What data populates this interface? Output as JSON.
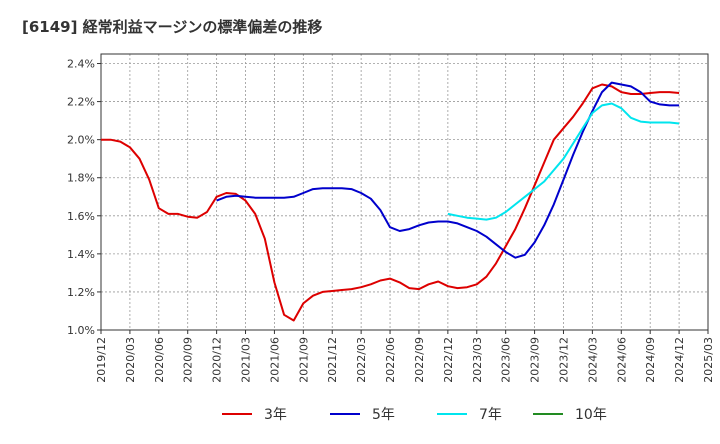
{
  "chart_data": {
    "type": "line",
    "title": "[6149]  経常利益マージンの標準偏差の推移",
    "xlabel": "",
    "ylabel": "",
    "ylim": [
      1.0,
      2.45
    ],
    "y_ticks": [
      1.0,
      1.2,
      1.4,
      1.6,
      1.8,
      2.0,
      2.2,
      2.4
    ],
    "y_tick_labels": [
      "1.0%",
      "1.2%",
      "1.4%",
      "1.6%",
      "1.8%",
      "2.0%",
      "2.2%",
      "2.4%"
    ],
    "x_tick_labels": [
      "2019/12",
      "2020/03",
      "2020/06",
      "2020/09",
      "2020/12",
      "2021/03",
      "2021/06",
      "2021/09",
      "2021/12",
      "2022/03",
      "2022/06",
      "2022/09",
      "2022/12",
      "2023/03",
      "2023/06",
      "2023/09",
      "2023/12",
      "2024/03",
      "2024/06",
      "2024/09",
      "2024/12",
      "2025/03"
    ],
    "grid": true,
    "legend_position": "bottom",
    "series": [
      {
        "name": "3年",
        "color": "#dd0000",
        "x": [
          "2019/12",
          "2020/01",
          "2020/02",
          "2020/03",
          "2020/04",
          "2020/05",
          "2020/06",
          "2020/07",
          "2020/08",
          "2020/09",
          "2020/10",
          "2020/11",
          "2020/12",
          "2021/01",
          "2021/02",
          "2021/03",
          "2021/04",
          "2021/05",
          "2021/06",
          "2021/07",
          "2021/08",
          "2021/09",
          "2021/10",
          "2021/11",
          "2021/12",
          "2022/01",
          "2022/02",
          "2022/03",
          "2022/04",
          "2022/05",
          "2022/06",
          "2022/07",
          "2022/08",
          "2022/09",
          "2022/10",
          "2022/11",
          "2022/12",
          "2023/01",
          "2023/02",
          "2023/03",
          "2023/04",
          "2023/05",
          "2023/06",
          "2023/07",
          "2023/08",
          "2023/09",
          "2023/10",
          "2023/11",
          "2023/12",
          "2024/01",
          "2024/02",
          "2024/03",
          "2024/04",
          "2024/05",
          "2024/06",
          "2024/07",
          "2024/08",
          "2024/09",
          "2024/10",
          "2024/11",
          "2024/12"
        ],
        "values": [
          2.0,
          2.0,
          1.99,
          1.96,
          1.9,
          1.79,
          1.64,
          1.61,
          1.61,
          1.595,
          1.59,
          1.62,
          1.7,
          1.72,
          1.715,
          1.68,
          1.61,
          1.48,
          1.25,
          1.08,
          1.05,
          1.14,
          1.18,
          1.2,
          1.205,
          1.21,
          1.215,
          1.225,
          1.24,
          1.26,
          1.27,
          1.25,
          1.22,
          1.215,
          1.24,
          1.255,
          1.23,
          1.22,
          1.225,
          1.24,
          1.28,
          1.35,
          1.44,
          1.53,
          1.64,
          1.76,
          1.88,
          2.0,
          2.06,
          2.12,
          2.19,
          2.27,
          2.29,
          2.28,
          2.25,
          2.24,
          2.24,
          2.245,
          2.25,
          2.25,
          2.245
        ]
      },
      {
        "name": "5年",
        "color": "#0000cc",
        "x": [
          "2020/12",
          "2021/01",
          "2021/02",
          "2021/03",
          "2021/04",
          "2021/05",
          "2021/06",
          "2021/07",
          "2021/08",
          "2021/09",
          "2021/10",
          "2021/11",
          "2021/12",
          "2022/01",
          "2022/02",
          "2022/03",
          "2022/04",
          "2022/05",
          "2022/06",
          "2022/07",
          "2022/08",
          "2022/09",
          "2022/10",
          "2022/11",
          "2022/12",
          "2023/01",
          "2023/02",
          "2023/03",
          "2023/04",
          "2023/05",
          "2023/06",
          "2023/07",
          "2023/08",
          "2023/09",
          "2023/10",
          "2023/11",
          "2023/12",
          "2024/01",
          "2024/02",
          "2024/03",
          "2024/04",
          "2024/05",
          "2024/06",
          "2024/07",
          "2024/08",
          "2024/09",
          "2024/10",
          "2024/11",
          "2024/12"
        ],
        "values": [
          1.68,
          1.7,
          1.705,
          1.7,
          1.695,
          1.695,
          1.695,
          1.695,
          1.7,
          1.72,
          1.74,
          1.745,
          1.745,
          1.745,
          1.74,
          1.72,
          1.69,
          1.63,
          1.54,
          1.52,
          1.53,
          1.55,
          1.565,
          1.57,
          1.57,
          1.56,
          1.54,
          1.52,
          1.49,
          1.45,
          1.41,
          1.38,
          1.395,
          1.46,
          1.55,
          1.66,
          1.79,
          1.92,
          2.04,
          2.15,
          2.25,
          2.3,
          2.29,
          2.28,
          2.25,
          2.2,
          2.185,
          2.18,
          2.18
        ]
      },
      {
        "name": "7年",
        "color": "#00e5ee",
        "x": [
          "2022/12",
          "2023/01",
          "2023/02",
          "2023/03",
          "2023/04",
          "2023/05",
          "2023/06",
          "2023/07",
          "2023/08",
          "2023/09",
          "2023/10",
          "2023/11",
          "2023/12",
          "2024/01",
          "2024/02",
          "2024/03",
          "2024/04",
          "2024/05",
          "2024/06",
          "2024/07",
          "2024/08",
          "2024/09",
          "2024/10",
          "2024/11",
          "2024/12"
        ],
        "values": [
          1.61,
          1.6,
          1.59,
          1.585,
          1.58,
          1.59,
          1.62,
          1.66,
          1.7,
          1.74,
          1.78,
          1.84,
          1.9,
          1.98,
          2.06,
          2.14,
          2.18,
          2.19,
          2.165,
          2.115,
          2.095,
          2.09,
          2.09,
          2.09,
          2.085
        ]
      },
      {
        "name": "10年",
        "color": "#228b22",
        "x": [],
        "values": []
      }
    ]
  }
}
